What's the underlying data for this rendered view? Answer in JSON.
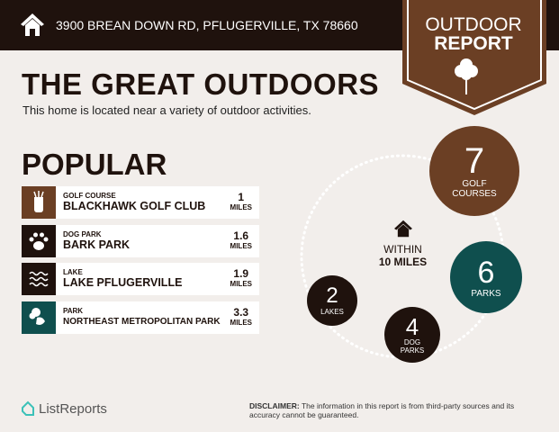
{
  "header": {
    "address": "3900 BREAN DOWN RD, PFLUGERVILLE, TX 78660",
    "badge_line1": "OUTDOOR",
    "badge_line2": "REPORT"
  },
  "title": "THE GREAT OUTDOORS",
  "subtitle": "This home is located near a variety of outdoor activities.",
  "popular": {
    "heading": "POPULAR",
    "items": [
      {
        "category": "GOLF COURSE",
        "name": "BLACKHAWK GOLF CLUB",
        "distance": "1",
        "unit": "MILES",
        "icon": "golf-bag-icon",
        "color": "#6b3f24"
      },
      {
        "category": "DOG PARK",
        "name": "BARK PARK",
        "distance": "1.6",
        "unit": "MILES",
        "icon": "paw-icon",
        "color": "#1f120d"
      },
      {
        "category": "LAKE",
        "name": "LAKE PFLUGERVILLE",
        "distance": "1.9",
        "unit": "MILES",
        "icon": "waves-icon",
        "color": "#1f120d"
      },
      {
        "category": "PARK",
        "name": "NORTHEAST METROPOLITAN PARK",
        "distance": "3.3",
        "unit": "MILES",
        "icon": "tree-icon",
        "color": "#0f4f4e"
      }
    ]
  },
  "nearby": {
    "within": "WITHIN",
    "radius": "10 MILES",
    "counts": [
      {
        "count": "7",
        "label1": "GOLF",
        "label2": "COURSES",
        "color": "#6b3f24"
      },
      {
        "count": "6",
        "label1": "PARKS",
        "label2": "",
        "color": "#0f4f4e"
      },
      {
        "count": "4",
        "label1": "DOG",
        "label2": "PARKS",
        "color": "#1f120d"
      },
      {
        "count": "2",
        "label1": "LAKES",
        "label2": "",
        "color": "#1f120d"
      }
    ]
  },
  "footer": {
    "logo": "ListReports",
    "disclaimer_label": "DISCLAIMER:",
    "disclaimer": " The information in this report is from third-party sources and its accuracy cannot be guaranteed."
  }
}
